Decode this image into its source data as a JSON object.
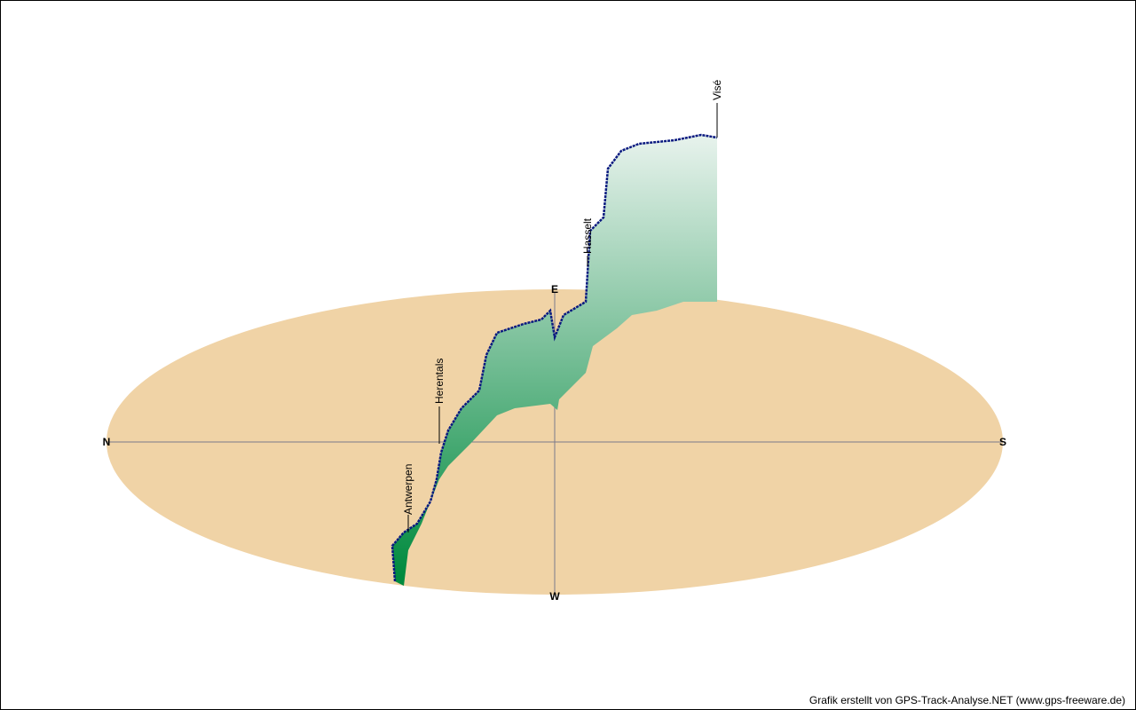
{
  "compass": {
    "north": "N",
    "south": "S",
    "west": "W",
    "east": "E"
  },
  "places": [
    {
      "label": "Antwerpen"
    },
    {
      "label": "Herentals"
    },
    {
      "label": "Hasselt"
    },
    {
      "label": "Visé"
    }
  ],
  "footer": "Grafik erstellt von GPS-Track-Analyse.NET (www.gps-freeware.de)"
}
